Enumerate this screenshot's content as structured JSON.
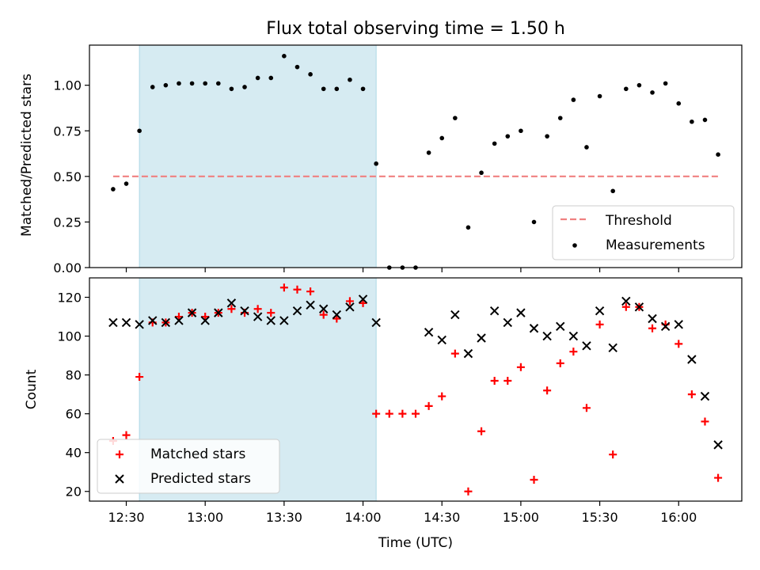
{
  "chart_data": [
    {
      "type": "scatter",
      "title": "Flux total observing time = 1.50 h",
      "xlabel": "",
      "ylabel": "Matched/Predicted stars",
      "ylim": [
        0,
        1.22
      ],
      "yticks": [
        "0.00",
        "0.25",
        "0.50",
        "0.75",
        "1.00"
      ],
      "grid": false,
      "legend_position": "lower-right",
      "highlight": {
        "start": "12:35",
        "end": "14:05",
        "color": "#add8e6"
      },
      "threshold": {
        "name": "Threshold",
        "y": 0.5,
        "from": "12:25",
        "to": "16:15",
        "color": "#f08080",
        "style": "dashed"
      },
      "series": [
        {
          "name": "Measurements",
          "color": "#000000",
          "marker": "dot",
          "x": [
            "12:25",
            "12:30",
            "12:35",
            "12:40",
            "12:45",
            "12:50",
            "12:55",
            "13:00",
            "13:05",
            "13:10",
            "13:15",
            "13:20",
            "13:25",
            "13:30",
            "13:35",
            "13:40",
            "13:45",
            "13:50",
            "13:55",
            "14:00",
            "14:05",
            "14:10",
            "14:15",
            "14:20",
            "14:25",
            "14:30",
            "14:35",
            "14:40",
            "14:45",
            "14:50",
            "14:55",
            "15:00",
            "15:05",
            "15:10",
            "15:15",
            "15:20",
            "15:25",
            "15:30",
            "15:35",
            "15:40",
            "15:45",
            "15:50",
            "15:55",
            "16:00",
            "16:05",
            "16:10",
            "16:15"
          ],
          "y": [
            0.43,
            0.46,
            0.75,
            0.99,
            1.0,
            1.01,
            1.01,
            1.01,
            1.01,
            0.98,
            0.99,
            1.04,
            1.04,
            1.16,
            1.1,
            1.06,
            0.98,
            0.98,
            1.03,
            0.98,
            0.57,
            0.0,
            0.0,
            0.0,
            0.63,
            0.71,
            0.82,
            0.22,
            0.52,
            0.68,
            0.72,
            0.75,
            0.25,
            0.72,
            0.82,
            0.92,
            0.66,
            0.94,
            0.42,
            0.98,
            1.0,
            0.96,
            1.01,
            0.9,
            0.8,
            0.81,
            0.62
          ]
        }
      ]
    },
    {
      "type": "scatter",
      "title": "",
      "xlabel": "Time (UTC)",
      "ylabel": "Count",
      "ylim": [
        15,
        130
      ],
      "yticks": [
        "20",
        "40",
        "60",
        "80",
        "100",
        "120"
      ],
      "xticks": [
        "12:30",
        "13:00",
        "13:30",
        "14:00",
        "14:30",
        "15:00",
        "15:30",
        "16:00"
      ],
      "grid": false,
      "legend_position": "lower-left",
      "highlight": {
        "start": "12:35",
        "end": "14:05",
        "color": "#add8e6"
      },
      "series": [
        {
          "name": "Matched stars",
          "color": "#ff0000",
          "marker": "plus",
          "x": [
            "12:25",
            "12:30",
            "12:35",
            "12:40",
            "12:45",
            "12:50",
            "12:55",
            "13:00",
            "13:05",
            "13:10",
            "13:15",
            "13:20",
            "13:25",
            "13:30",
            "13:35",
            "13:40",
            "13:45",
            "13:50",
            "13:55",
            "14:00",
            "14:05",
            "14:10",
            "14:15",
            "14:20",
            "14:25",
            "14:30",
            "14:35",
            "14:40",
            "14:45",
            "14:50",
            "14:55",
            "15:00",
            "15:05",
            "15:10",
            "15:15",
            "15:20",
            "15:25",
            "15:30",
            "15:35",
            "15:40",
            "15:45",
            "15:50",
            "15:55",
            "16:00",
            "16:05",
            "16:10",
            "16:15"
          ],
          "y": [
            46,
            49,
            79,
            107,
            107,
            110,
            112,
            110,
            112,
            114,
            112,
            114,
            112,
            125,
            124,
            123,
            111,
            109,
            118,
            117,
            60,
            60,
            60,
            60,
            64,
            69,
            91,
            20,
            51,
            77,
            77,
            84,
            26,
            72,
            86,
            92,
            63,
            106,
            39,
            115,
            115,
            104,
            106,
            96,
            70,
            56,
            27
          ]
        },
        {
          "name": "Predicted stars",
          "color": "#000000",
          "marker": "x",
          "x": [
            "12:25",
            "12:30",
            "12:35",
            "12:40",
            "12:45",
            "12:50",
            "12:55",
            "13:00",
            "13:05",
            "13:10",
            "13:15",
            "13:20",
            "13:25",
            "13:30",
            "13:35",
            "13:40",
            "13:45",
            "13:50",
            "13:55",
            "14:00",
            "14:05",
            "14:25",
            "14:30",
            "14:35",
            "14:40",
            "14:45",
            "14:50",
            "14:55",
            "15:00",
            "15:05",
            "15:10",
            "15:15",
            "15:20",
            "15:25",
            "15:30",
            "15:35",
            "15:40",
            "15:45",
            "15:50",
            "15:55",
            "16:00",
            "16:05",
            "16:10",
            "16:15"
          ],
          "y": [
            107,
            107,
            106,
            108,
            107,
            108,
            112,
            108,
            112,
            117,
            113,
            110,
            108,
            108,
            113,
            116,
            114,
            111,
            115,
            119,
            107,
            102,
            98,
            111,
            91,
            99,
            113,
            107,
            112,
            104,
            100,
            105,
            100,
            95,
            113,
            94,
            118,
            115,
            109,
            105,
            106,
            88,
            69,
            44
          ]
        }
      ]
    }
  ]
}
